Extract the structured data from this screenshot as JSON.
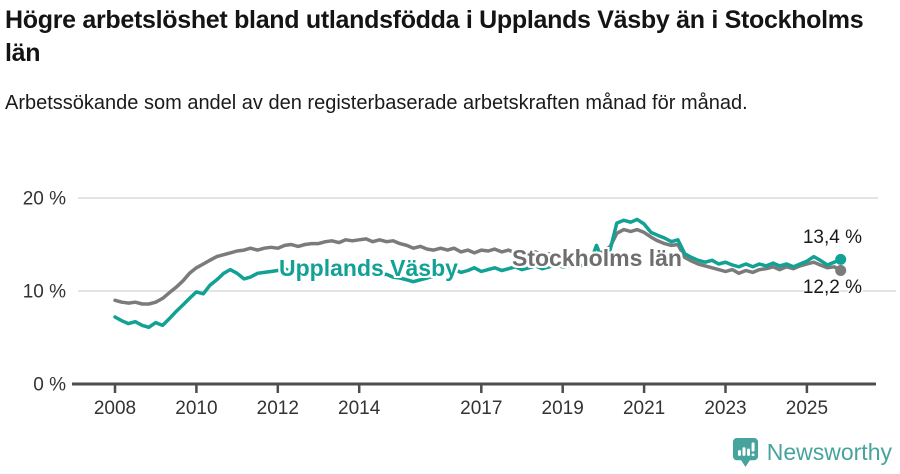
{
  "header": {
    "title": "Högre arbetslöshet bland utlandsfödda i Upplands Väsby än i Stockholms län",
    "subtitle": "Arbetssökande som andel av den registerbaserade arbetskraften månad för månad."
  },
  "annotations": {
    "upplands_label": "Upplands Väsby",
    "stockholm_label": "Stockholms län",
    "end_value_top": "13,4 %",
    "end_value_bottom": "12,2 %"
  },
  "footer": {
    "brand": "Newsworthy",
    "brand_color": "#47a39d"
  },
  "colors": {
    "teal_series": "#12a195",
    "gray_series": "#7b7b7b",
    "gray_label": "#6e6e6e",
    "axis": "#4d4d4d",
    "gridline": "#dcdcdc",
    "text": "#333333",
    "title_text": "#141414"
  },
  "chart_data": {
    "type": "line",
    "title": "Högre arbetslöshet bland utlandsfödda i Upplands Väsby än i Stockholms län",
    "subtitle": "Arbetssökande som andel av den registerbaserade arbetskraften månad för månad.",
    "x_unit": "decimal_year_monthly_share_of_workforce",
    "ylim": [
      0,
      20
    ],
    "grid": "horizontal-light",
    "legend_position": "inline-labels-on-lines",
    "yticks": [
      {
        "value": 0,
        "label": "0 %"
      },
      {
        "value": 10,
        "label": "10 %"
      },
      {
        "value": 20,
        "label": "20 %"
      }
    ],
    "x_label_years": [
      2008,
      2010,
      2012,
      2014,
      2017,
      2019,
      2021,
      2023,
      2025
    ],
    "x": [
      2008,
      2008.17,
      2008.33,
      2008.5,
      2008.67,
      2008.83,
      2009,
      2009.17,
      2009.33,
      2009.5,
      2009.67,
      2009.83,
      2010,
      2010.17,
      2010.33,
      2010.5,
      2010.67,
      2010.83,
      2011,
      2011.17,
      2011.33,
      2011.5,
      2011.67,
      2011.83,
      2012,
      2012.17,
      2012.33,
      2012.5,
      2012.67,
      2012.83,
      2013,
      2013.17,
      2013.33,
      2013.5,
      2013.67,
      2013.83,
      2014,
      2014.17,
      2014.33,
      2014.5,
      2014.67,
      2014.83,
      2015,
      2015.17,
      2015.33,
      2015.5,
      2015.67,
      2015.83,
      2016,
      2016.17,
      2016.33,
      2016.5,
      2016.67,
      2016.83,
      2017,
      2017.17,
      2017.33,
      2017.5,
      2017.67,
      2017.83,
      2018,
      2018.17,
      2018.33,
      2018.5,
      2018.67,
      2018.83,
      2019,
      2019.17,
      2019.33,
      2019.5,
      2019.67,
      2019.83,
      2020,
      2020.17,
      2020.33,
      2020.5,
      2020.67,
      2020.83,
      2021,
      2021.17,
      2021.33,
      2021.5,
      2021.67,
      2021.83,
      2022,
      2022.17,
      2022.33,
      2022.5,
      2022.67,
      2022.83,
      2023,
      2023.17,
      2023.33,
      2023.5,
      2023.67,
      2023.83,
      2024,
      2024.17,
      2024.33,
      2024.5,
      2024.67,
      2024.83,
      2025,
      2025.17,
      2025.33,
      2025.5,
      2025.67,
      2025.83
    ],
    "series": [
      {
        "name": "Upplands Väsby",
        "color": "#12a195",
        "end_label": "13,4 %",
        "end_value": 13.4,
        "values": [
          7.2,
          6.8,
          6.5,
          6.7,
          6.3,
          6.1,
          6.6,
          6.3,
          7.0,
          7.8,
          8.5,
          9.2,
          9.9,
          9.7,
          10.6,
          11.2,
          11.9,
          12.3,
          11.9,
          11.3,
          11.5,
          11.9,
          12.0,
          12.1,
          12.2,
          12.4,
          12.0,
          12.4,
          12.3,
          12.5,
          12.4,
          12.5,
          12.0,
          11.9,
          12.1,
          12.2,
          12.1,
          12.3,
          12.0,
          11.7,
          11.8,
          11.5,
          11.4,
          11.2,
          11.0,
          11.2,
          11.4,
          11.6,
          11.8,
          12.1,
          12.3,
          12.0,
          12.2,
          12.5,
          12.1,
          12.3,
          12.5,
          12.2,
          12.4,
          12.6,
          12.3,
          12.5,
          12.7,
          12.4,
          12.6,
          12.8,
          12.6,
          12.7,
          12.9,
          12.7,
          13.0,
          14.9,
          13.1,
          14.5,
          17.3,
          17.6,
          17.4,
          17.7,
          17.2,
          16.3,
          16.0,
          15.7,
          15.3,
          15.5,
          14.0,
          13.6,
          13.3,
          13.1,
          13.3,
          12.9,
          13.1,
          12.8,
          12.6,
          12.9,
          12.6,
          12.9,
          12.7,
          13.0,
          12.7,
          12.9,
          12.6,
          12.9,
          13.2,
          13.7,
          13.3,
          12.8,
          13.1,
          13.4
        ]
      },
      {
        "name": "Stockholms län",
        "color": "#7b7b7b",
        "end_label": "12,2 %",
        "end_value": 12.2,
        "values": [
          9.0,
          8.8,
          8.7,
          8.8,
          8.6,
          8.6,
          8.8,
          9.2,
          9.8,
          10.4,
          11.1,
          11.9,
          12.5,
          12.9,
          13.3,
          13.7,
          13.9,
          14.1,
          14.3,
          14.4,
          14.6,
          14.4,
          14.6,
          14.7,
          14.6,
          14.9,
          15.0,
          14.8,
          15.0,
          15.1,
          15.1,
          15.3,
          15.4,
          15.2,
          15.5,
          15.4,
          15.5,
          15.6,
          15.3,
          15.5,
          15.3,
          15.4,
          15.1,
          14.9,
          14.6,
          14.8,
          14.5,
          14.4,
          14.6,
          14.4,
          14.6,
          14.2,
          14.4,
          14.1,
          14.4,
          14.3,
          14.5,
          14.2,
          14.4,
          14.1,
          14.3,
          14.0,
          14.2,
          13.9,
          14.0,
          13.8,
          14.0,
          13.8,
          13.9,
          13.7,
          13.9,
          14.0,
          14.2,
          14.8,
          16.2,
          16.6,
          16.4,
          16.6,
          16.3,
          15.8,
          15.4,
          15.1,
          14.9,
          15.0,
          13.6,
          13.2,
          12.9,
          12.7,
          12.5,
          12.3,
          12.1,
          12.3,
          11.9,
          12.2,
          12.0,
          12.3,
          12.4,
          12.6,
          12.3,
          12.6,
          12.4,
          12.7,
          12.9,
          13.1,
          12.8,
          12.5,
          12.6,
          12.2
        ]
      }
    ]
  }
}
